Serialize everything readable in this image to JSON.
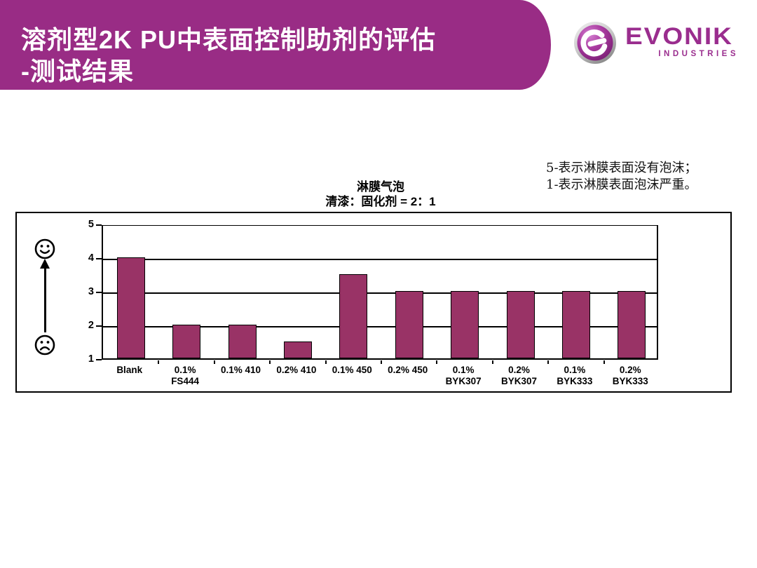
{
  "header": {
    "title_line1": "溶剂型2K PU中表面控制助剂的评估",
    "title_line2": "-测试结果",
    "bg_color": "#992c85",
    "text_color": "#ffffff"
  },
  "logo": {
    "brand": "EVONIK",
    "subbrand": "INDUSTRIES",
    "color": "#9a2d8e"
  },
  "note": {
    "line1": "5-表示淋膜表面没有泡沫；",
    "line2": "1-表示淋膜表面泡沫严重。"
  },
  "chart_data": {
    "type": "bar",
    "title": "淋膜气泡",
    "subtitle": "清漆：固化剂 = 2：1",
    "categories": [
      "Blank",
      "0.1%\nFS444",
      "0.1% 410",
      "0.2% 410",
      "0.1% 450",
      "0.2% 450",
      "0.1%\nBYK307",
      "0.2%\nBYK307",
      "0.1%\nBYK333",
      "0.2%\nBYK333"
    ],
    "values": [
      4,
      2,
      2,
      1.5,
      3.5,
      3,
      3,
      3,
      3,
      3
    ],
    "ylim": [
      1,
      5
    ],
    "yticks": [
      1,
      2,
      3,
      4,
      5
    ],
    "xlabel": "",
    "ylabel": "",
    "bar_color": "#993366",
    "bar_border_color": "#000000",
    "grid": true,
    "legend_position": "none"
  }
}
